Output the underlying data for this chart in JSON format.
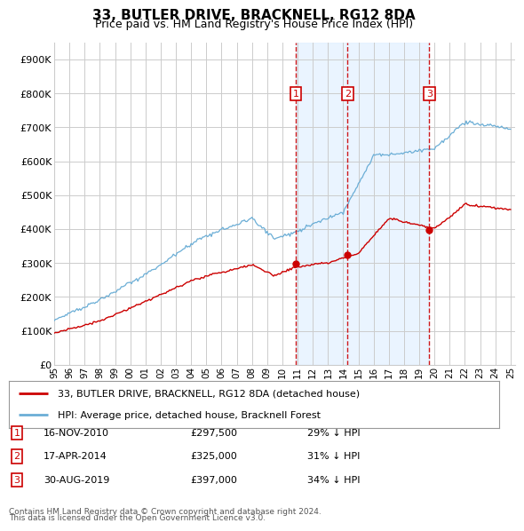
{
  "title": "33, BUTLER DRIVE, BRACKNELL, RG12 8DA",
  "subtitle": "Price paid vs. HM Land Registry's House Price Index (HPI)",
  "footer1": "Contains HM Land Registry data © Crown copyright and database right 2024.",
  "footer2": "This data is licensed under the Open Government Licence v3.0.",
  "legend_line1": "33, BUTLER DRIVE, BRACKNELL, RG12 8DA (detached house)",
  "legend_line2": "HPI: Average price, detached house, Bracknell Forest",
  "transactions": [
    {
      "num": 1,
      "date": "16-NOV-2010",
      "price": "£297,500",
      "hpi": "29% ↓ HPI",
      "year": 2010.88
    },
    {
      "num": 2,
      "date": "17-APR-2014",
      "price": "£325,000",
      "hpi": "31% ↓ HPI",
      "year": 2014.29
    },
    {
      "num": 3,
      "date": "30-AUG-2019",
      "price": "£397,000",
      "hpi": "34% ↓ HPI",
      "year": 2019.66
    }
  ],
  "transaction_prices": [
    297500,
    325000,
    397000
  ],
  "ylim": [
    0,
    950000
  ],
  "yticks": [
    0,
    100000,
    200000,
    300000,
    400000,
    500000,
    600000,
    700000,
    800000,
    900000
  ],
  "ytick_labels": [
    "£0",
    "£100K",
    "£200K",
    "£300K",
    "£400K",
    "£500K",
    "£600K",
    "£700K",
    "£800K",
    "£900K"
  ],
  "hpi_color": "#6baed6",
  "price_color": "#cc0000",
  "vline_color": "#cc0000",
  "box_color": "#cc0000",
  "shade_color": "#ddeeff",
  "grid_color": "#cccccc",
  "bg_color": "#ffffff"
}
